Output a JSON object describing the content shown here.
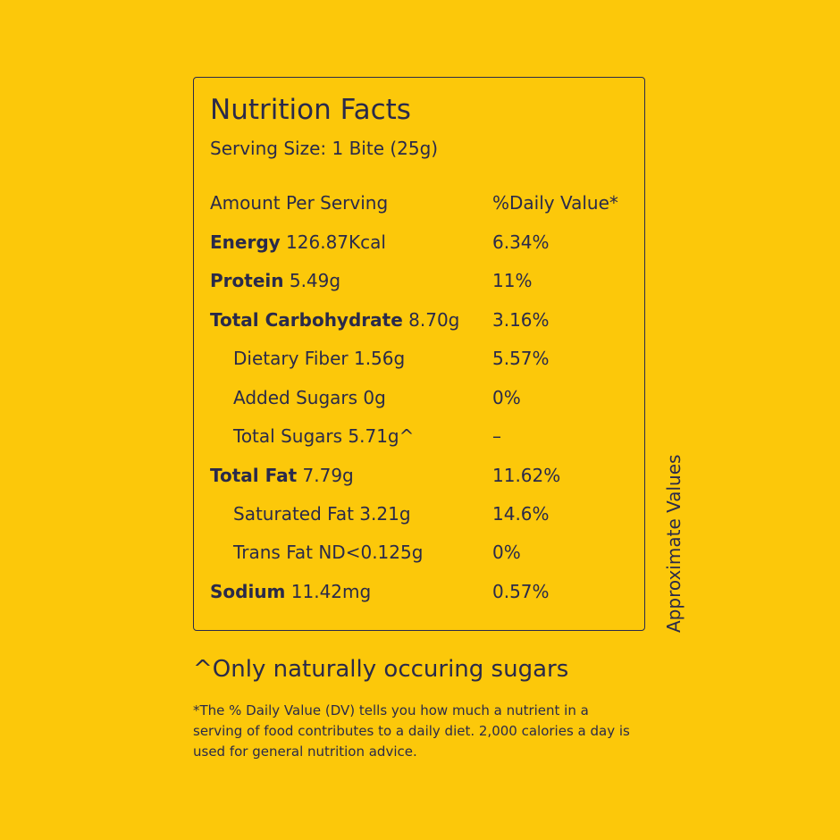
{
  "panel": {
    "title": "Nutrition Facts",
    "serving_size": "Serving Size: 1 Bite (25g)",
    "header": {
      "amount": "Amount Per Serving",
      "daily_value": "%Daily Value*"
    },
    "rows": [
      {
        "label": "Energy",
        "amount": "126.87Kcal",
        "dv": "6.34%"
      },
      {
        "label": "Protein",
        "amount": "5.49g",
        "dv": "11%"
      },
      {
        "label": "Total Carbohydrate",
        "amount": "8.70g",
        "dv": "3.16%"
      },
      {
        "label": "Dietary Fiber",
        "amount": "1.56g",
        "dv": "5.57%"
      },
      {
        "label": "Added Sugars",
        "amount": "0g",
        "dv": "0%"
      },
      {
        "label": "Total Sugars",
        "amount": "5.71g^",
        "dv": "–"
      },
      {
        "label": "Total Fat",
        "amount": "7.79g",
        "dv": "11.62%"
      },
      {
        "label": "Saturated Fat",
        "amount": "3.21g",
        "dv": "14.6%"
      },
      {
        "label": "Trans Fat",
        "amount": "ND<0.125g",
        "dv": "0%"
      },
      {
        "label": "Sodium",
        "amount": "11.42mg",
        "dv": "0.57%"
      }
    ]
  },
  "side_label": "Approximate Values",
  "footnote_sugars": "^Only naturally occuring sugars",
  "footnote_dv": "*The % Daily Value (DV) tells you how much a nutrient in a serving of food contributes to a daily diet. 2,000 calories a day is used for general nutrition advice.",
  "colors": {
    "background": "#fcc80a",
    "text": "#2a2a4a"
  }
}
